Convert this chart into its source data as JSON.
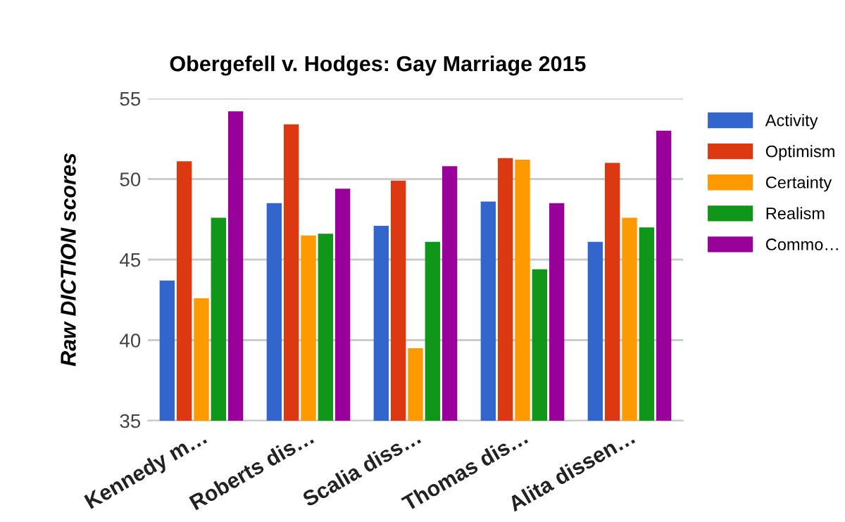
{
  "chart_data": {
    "type": "bar",
    "title": "Obergefell v. Hodges: Gay Marriage 2015",
    "ylabel": "Raw DICTION scores",
    "categories": [
      "Kennedy m…",
      "Roberts dis…",
      "Scalia diss…",
      "Thomas dis…",
      "Alita dissen…"
    ],
    "series": [
      {
        "name": "Activity",
        "color": "#3366cc",
        "values": [
          43.7,
          48.5,
          47.1,
          48.6,
          46.1
        ]
      },
      {
        "name": "Optimism",
        "color": "#dc3912",
        "values": [
          51.1,
          53.4,
          49.9,
          51.3,
          51.0
        ]
      },
      {
        "name": "Certainty",
        "color": "#ff9900",
        "values": [
          42.6,
          46.5,
          39.5,
          51.2,
          47.6
        ]
      },
      {
        "name": "Realism",
        "color": "#109618",
        "values": [
          47.6,
          46.6,
          46.1,
          44.4,
          47.0
        ]
      },
      {
        "name": "Commo…",
        "color": "#990099",
        "values": [
          54.2,
          49.4,
          50.8,
          48.5,
          53.0
        ]
      }
    ],
    "ylim": [
      35,
      55
    ],
    "yticks": [
      35,
      40,
      45,
      50,
      55
    ],
    "grid": "y",
    "legend": "right"
  }
}
